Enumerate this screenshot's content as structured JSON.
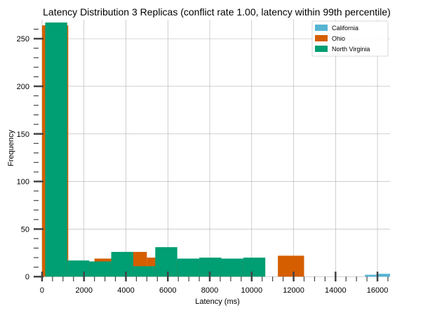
{
  "chart_data": {
    "type": "bar",
    "title": "Latency Distribution 3 Replicas (conflict rate 1.00, latency within 99th percentile)",
    "xlabel": "Latency (ms)",
    "ylabel": "Frequency",
    "xlim": [
      -400,
      16600
    ],
    "ylim": [
      -5,
      270
    ],
    "xticks": [
      0,
      2000,
      4000,
      6000,
      8000,
      10000,
      12000,
      14000,
      16000
    ],
    "yticks": [
      0,
      50,
      100,
      150,
      200,
      250
    ],
    "grid": true,
    "legend_position": "top-right",
    "series": [
      {
        "name": "California",
        "color": "#56b4d3",
        "bins": [
          {
            "x0": 15400,
            "x1": 16000,
            "count": 2
          },
          {
            "x0": 16000,
            "x1": 16600,
            "count": 3
          }
        ]
      },
      {
        "name": "Ohio",
        "color": "#d55e00",
        "bins": [
          {
            "x0": 0,
            "x1": 1250,
            "count": 264
          },
          {
            "x0": 1250,
            "x1": 2500,
            "count": 14
          },
          {
            "x0": 2500,
            "x1": 3750,
            "count": 19
          },
          {
            "x0": 3750,
            "x1": 5000,
            "count": 26
          },
          {
            "x0": 5000,
            "x1": 6250,
            "count": 20
          },
          {
            "x0": 6250,
            "x1": 7500,
            "count": 17
          },
          {
            "x0": 7500,
            "x1": 8750,
            "count": 16
          },
          {
            "x0": 8750,
            "x1": 10000,
            "count": 17
          },
          {
            "x0": 11250,
            "x1": 12500,
            "count": 22
          }
        ]
      },
      {
        "name": "North Virginia",
        "color": "#009e73",
        "bins": [
          {
            "x0": 150,
            "x1": 1200,
            "count": 267
          },
          {
            "x0": 1200,
            "x1": 2250,
            "count": 17
          },
          {
            "x0": 2250,
            "x1": 3300,
            "count": 16
          },
          {
            "x0": 3300,
            "x1": 4350,
            "count": 26
          },
          {
            "x0": 4350,
            "x1": 5400,
            "count": 11
          },
          {
            "x0": 5400,
            "x1": 6450,
            "count": 31
          },
          {
            "x0": 6450,
            "x1": 7500,
            "count": 19
          },
          {
            "x0": 7500,
            "x1": 8550,
            "count": 20
          },
          {
            "x0": 8550,
            "x1": 9600,
            "count": 19
          },
          {
            "x0": 9600,
            "x1": 10650,
            "count": 20
          }
        ]
      }
    ]
  }
}
